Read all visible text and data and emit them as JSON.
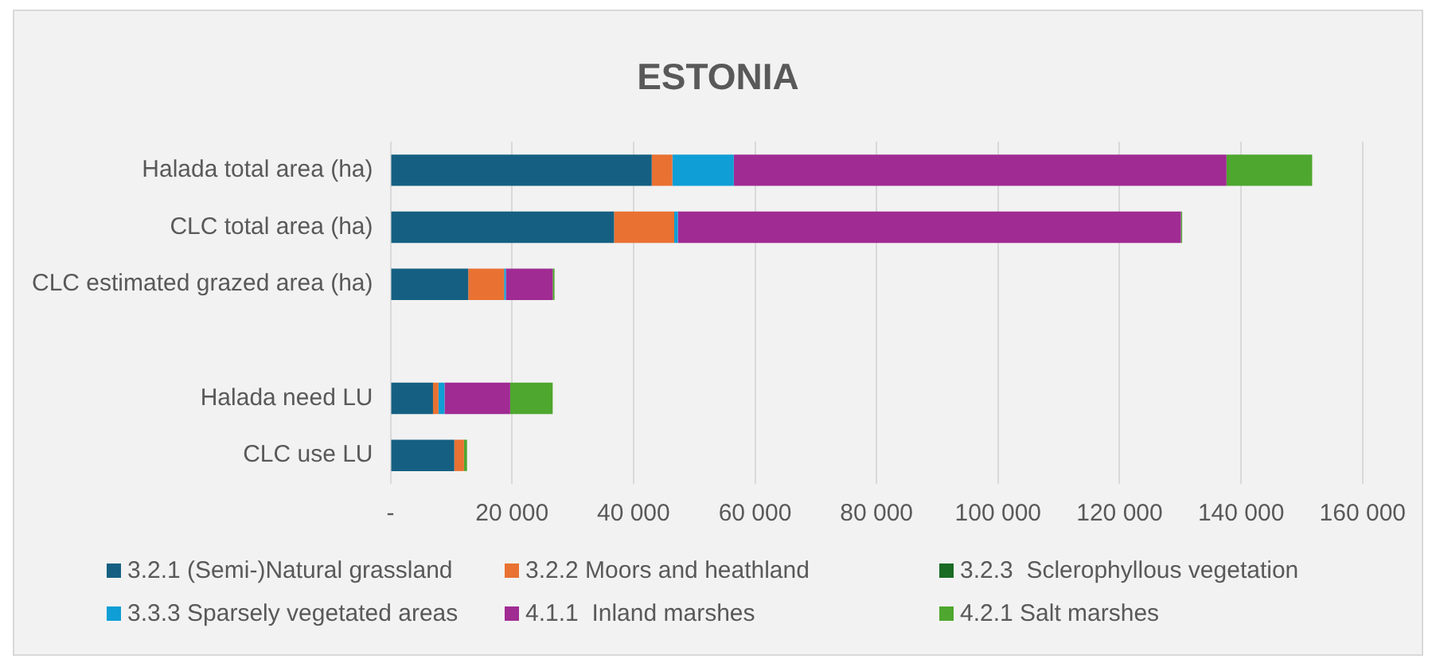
{
  "chart_data": {
    "type": "bar",
    "orientation": "horizontal",
    "stacked": true,
    "title": "ESTONIA",
    "categories": [
      "Halada total area (ha)",
      "CLC total area (ha)",
      "CLC estimated grazed area (ha)",
      null,
      "Halada need LU",
      "CLC use LU"
    ],
    "series": [
      {
        "name": "3.2.1 (Semi-)Natural grassland",
        "color": "#156082",
        "values": [
          43000,
          36800,
          12800,
          null,
          7000,
          10500
        ]
      },
      {
        "name": "3.2.2 Moors and heathland",
        "color": "#e97132",
        "values": [
          3400,
          9900,
          5900,
          null,
          900,
          1600
        ]
      },
      {
        "name": "3.2.3  Sclerophyllous vegetation",
        "color": "#196b24",
        "values": [
          0,
          0,
          0,
          null,
          0,
          0
        ]
      },
      {
        "name": "3.3.3 Sparsely vegetated areas",
        "color": "#0f9ed5",
        "values": [
          10100,
          600,
          300,
          null,
          1000,
          0
        ]
      },
      {
        "name": "4.1.1  Inland marshes",
        "color": "#a02b93",
        "values": [
          81100,
          82800,
          7700,
          null,
          10800,
          0
        ]
      },
      {
        "name": "4.2.1 Salt marshes",
        "color": "#4ea72e",
        "values": [
          14100,
          200,
          300,
          null,
          7000,
          500
        ]
      }
    ],
    "xlim": [
      0,
      160000
    ],
    "xticks": [
      {
        "value": 0,
        "label": "-"
      },
      {
        "value": 20000,
        "label": "20 000"
      },
      {
        "value": 40000,
        "label": "40 000"
      },
      {
        "value": 60000,
        "label": "60 000"
      },
      {
        "value": 80000,
        "label": "80 000"
      },
      {
        "value": 100000,
        "label": "100 000"
      },
      {
        "value": 120000,
        "label": "120 000"
      },
      {
        "value": 140000,
        "label": "140 000"
      },
      {
        "value": 160000,
        "label": "160 000"
      }
    ],
    "grid": "x",
    "legend": "bottom"
  }
}
